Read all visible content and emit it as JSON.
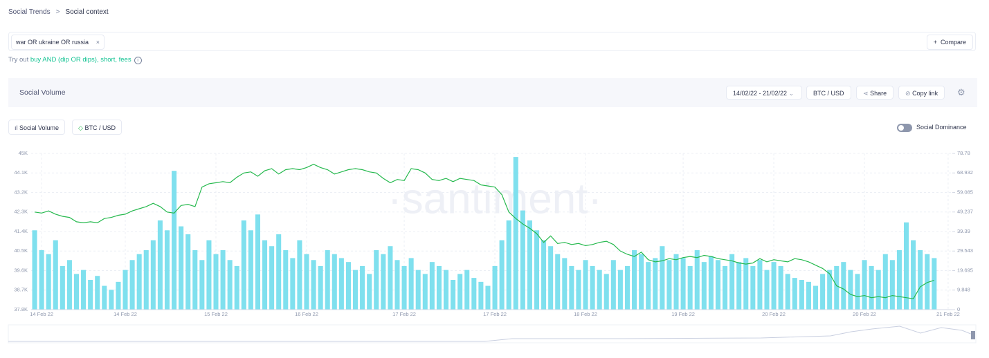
{
  "breadcrumb": [
    "Social Trends",
    "Social context"
  ],
  "search": {
    "tag": "war OR ukraine OR russia",
    "compare": "Compare",
    "hint_prefix": "Try out",
    "hint_link": "buy AND (dip OR dips), short, fees"
  },
  "panel": {
    "title": "Social Volume",
    "date_range": "14/02/22 - 21/02/22",
    "asset": "BTC / USD",
    "share": "Share",
    "copy_link": "Copy link",
    "toggle": "Social Dominance"
  },
  "chart_data": {
    "type": "bar",
    "watermark": "·santiment·",
    "categories": [
      null,
      "14 Feb 22",
      null,
      null,
      null,
      null,
      null,
      null,
      null,
      null,
      null,
      null,
      null,
      "14 Feb 22",
      null,
      null,
      null,
      null,
      null,
      null,
      null,
      null,
      null,
      null,
      null,
      null,
      "15 Feb 22",
      null,
      null,
      null,
      null,
      null,
      null,
      null,
      null,
      null,
      null,
      null,
      null,
      "16 Feb 22",
      null,
      null,
      null,
      null,
      null,
      null,
      null,
      null,
      null,
      null,
      null,
      null,
      null,
      "17 Feb 22",
      null,
      null,
      null,
      null,
      null,
      null,
      null,
      null,
      null,
      null,
      null,
      null,
      "17 Feb 22",
      null,
      null,
      null,
      null,
      null,
      null,
      null,
      null,
      null,
      null,
      null,
      null,
      "18 Feb 22",
      null,
      null,
      null,
      null,
      null,
      null,
      null,
      null,
      null,
      null,
      null,
      null,
      null,
      "19 Feb 22",
      null,
      null,
      null,
      null,
      null,
      null,
      null,
      null,
      null,
      null,
      null,
      null,
      "20 Feb 22",
      null,
      null,
      null,
      null,
      null,
      null,
      null,
      null,
      null,
      null,
      null,
      null,
      "20 Feb 22",
      null,
      null,
      null,
      null,
      null,
      null,
      null,
      null,
      null,
      null,
      null,
      "21 Feb 22"
    ],
    "series": [
      {
        "name": "Social Volume",
        "type": "bar",
        "axis": "y2",
        "color": "#7fe0ee",
        "values": [
          40,
          30,
          28,
          35,
          22,
          25,
          18,
          20,
          15,
          17,
          12,
          10,
          14,
          20,
          25,
          28,
          30,
          35,
          45,
          40,
          70,
          42,
          38,
          30,
          25,
          35,
          28,
          30,
          25,
          22,
          45,
          40,
          48,
          35,
          32,
          38,
          30,
          26,
          35,
          28,
          25,
          22,
          30,
          28,
          26,
          24,
          20,
          22,
          18,
          30,
          28,
          32,
          25,
          22,
          26,
          20,
          18,
          24,
          22,
          20,
          15,
          18,
          20,
          16,
          14,
          12,
          22,
          35,
          45,
          77,
          50,
          45,
          40,
          35,
          32,
          28,
          26,
          22,
          20,
          25,
          22,
          20,
          18,
          25,
          20,
          22,
          30,
          28,
          24,
          26,
          32,
          25,
          28,
          26,
          22,
          30,
          24,
          27,
          25,
          22,
          28,
          24,
          26,
          22,
          25,
          20,
          24,
          22,
          18,
          16,
          15,
          14,
          12,
          18,
          20,
          22,
          24,
          20,
          18,
          25,
          22,
          20,
          28,
          25,
          30,
          44,
          35,
          30,
          28,
          26,
          null,
          null
        ]
      },
      {
        "name": "BTC / USD",
        "type": "line",
        "axis": "y",
        "color": "#26b94e",
        "values": [
          42300,
          42250,
          42350,
          42200,
          42100,
          42050,
          41850,
          41800,
          41850,
          41800,
          42000,
          42050,
          42150,
          42200,
          42350,
          42450,
          42550,
          42700,
          42550,
          42300,
          42250,
          42600,
          42650,
          42550,
          43450,
          43600,
          43650,
          43700,
          43650,
          43900,
          44100,
          44150,
          43950,
          44200,
          44300,
          44050,
          44250,
          44300,
          44250,
          44350,
          44500,
          44350,
          44250,
          44050,
          44150,
          44250,
          44300,
          44250,
          44150,
          44100,
          43850,
          43650,
          43800,
          43750,
          44300,
          44250,
          44100,
          43800,
          43750,
          43850,
          43700,
          43850,
          43800,
          43750,
          43550,
          43500,
          43450,
          43100,
          42300,
          42000,
          41750,
          41550,
          41300,
          40900,
          41200,
          40850,
          40900,
          40800,
          40850,
          40750,
          40800,
          40900,
          40950,
          40800,
          40500,
          40350,
          40250,
          40450,
          40100,
          40000,
          40050,
          40150,
          40100,
          40200,
          40250,
          40200,
          40300,
          40250,
          40150,
          40100,
          40050,
          39950,
          39900,
          39950,
          40150,
          40000,
          40100,
          40050,
          40000,
          40150,
          40100,
          40000,
          39850,
          39700,
          39450,
          38900,
          38750,
          38500,
          38400,
          38450,
          38350,
          38400,
          38350,
          38450,
          38400,
          38350,
          38300,
          38850,
          39050,
          39150,
          null,
          null
        ]
      }
    ],
    "ylim": [
      37800,
      45000
    ],
    "yticks": [
      {
        "value": 37800,
        "label": "37.8K"
      },
      {
        "value": 38700,
        "label": "38.7K"
      },
      {
        "value": 39600,
        "label": "39.6K"
      },
      {
        "value": 40500,
        "label": "40.5K"
      },
      {
        "value": 41400,
        "label": "41.4K"
      },
      {
        "value": 42300,
        "label": "42.3K"
      },
      {
        "value": 43200,
        "label": "43.2K"
      },
      {
        "value": 44100,
        "label": "44.1K"
      },
      {
        "value": 45000,
        "label": "45K"
      }
    ],
    "y2lim": [
      0,
      78.78
    ],
    "y2ticks": [
      0,
      9.848,
      19.695,
      29.543,
      39.39,
      49.237,
      59.085,
      68.932,
      78.78
    ],
    "grid": true
  }
}
